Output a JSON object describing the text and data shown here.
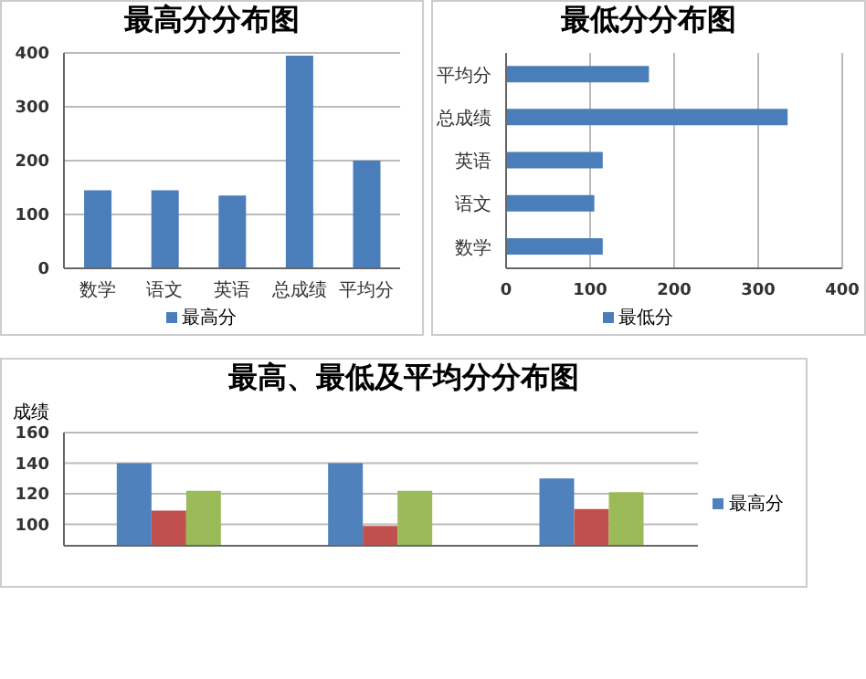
{
  "chart_data": [
    {
      "type": "bar",
      "title": "最高分分布图",
      "categories": [
        "数学",
        "语文",
        "英语",
        "总成绩",
        "平均分"
      ],
      "series": [
        {
          "name": "最高分",
          "color": "#4a7ebb",
          "values": [
            145,
            145,
            135,
            395,
            200
          ]
        }
      ],
      "ylim": [
        0,
        400
      ],
      "yticks": [
        0,
        100,
        200,
        300,
        400
      ],
      "grid": "y",
      "legend": "bottom"
    },
    {
      "type": "bar",
      "title": "最低分分布图",
      "orientation": "horizontal",
      "categories": [
        "平均分",
        "总成绩",
        "英语",
        "语文",
        "数学"
      ],
      "series": [
        {
          "name": "最低分",
          "color": "#4a7ebb",
          "values": [
            170,
            335,
            115,
            105,
            115
          ]
        }
      ],
      "xlim": [
        0,
        400
      ],
      "xticks": [
        0,
        100,
        200,
        300,
        400
      ],
      "grid": "x",
      "legend": "bottom"
    },
    {
      "type": "bar",
      "title": "最高、最低及平均分分布图",
      "ylabel": "成绩",
      "categories": [
        null,
        null,
        null
      ],
      "series": [
        {
          "name": "最高分",
          "color": "#4f81bd",
          "values": [
            140,
            140,
            130
          ]
        },
        {
          "color": "#c0504d",
          "values": [
            109,
            99,
            110
          ]
        },
        {
          "color": "#9bbb59",
          "values": [
            122,
            122,
            121
          ]
        }
      ],
      "ylim": [
        86,
        160
      ],
      "yticks": [
        100,
        120,
        140,
        160
      ],
      "grid": "y",
      "legend": "right"
    }
  ]
}
